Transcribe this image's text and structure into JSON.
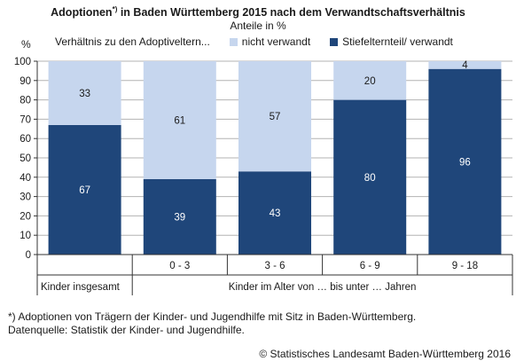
{
  "title": {
    "main": "Adoptionen",
    "sup": "*)",
    "rest": " in Baden Württemberg 2015 nach dem Verwandtschaftsverhältnis"
  },
  "subtitle": "Anteile in %",
  "colors": {
    "dark": "#1f467a",
    "light": "#c6d6ee",
    "grid": "#b3b3b3",
    "axis": "#333333"
  },
  "legend": {
    "heading": "Verhältnis zu den Adoptiveltern...",
    "items": [
      {
        "label": "nicht verwandt",
        "color": "#c6d6ee"
      },
      {
        "label": "Stiefelternteil/ verwandt",
        "color": "#1f467a"
      }
    ]
  },
  "chart_data": {
    "type": "bar",
    "stacked": true,
    "ylabel": "%",
    "ylim": [
      0,
      100
    ],
    "yticks": [
      0,
      10,
      20,
      30,
      40,
      50,
      60,
      70,
      80,
      90,
      100
    ],
    "grid": true,
    "categories": [
      "",
      "0 - 3",
      "3 - 6",
      "6 - 9",
      "9 - 18"
    ],
    "group_labels": [
      "Kinder insgesamt",
      "Kinder im Alter von … bis unter … Jahren"
    ],
    "series": [
      {
        "name": "Stiefelternteil/ verwandt",
        "color": "#1f467a",
        "values": [
          67,
          39,
          43,
          80,
          96
        ]
      },
      {
        "name": "nicht verwandt",
        "color": "#c6d6ee",
        "values": [
          33,
          61,
          57,
          20,
          4
        ]
      }
    ]
  },
  "footnote": {
    "line1": "*) Adoptionen von Trägern der Kinder- und Jugendhilfe mit Sitz in Baden-Württemberg.",
    "line2": "Datenquelle: Statistik der Kinder- und Jugendhilfe."
  },
  "copyright": "© Statistisches Landesamt Baden-Württemberg 2016"
}
